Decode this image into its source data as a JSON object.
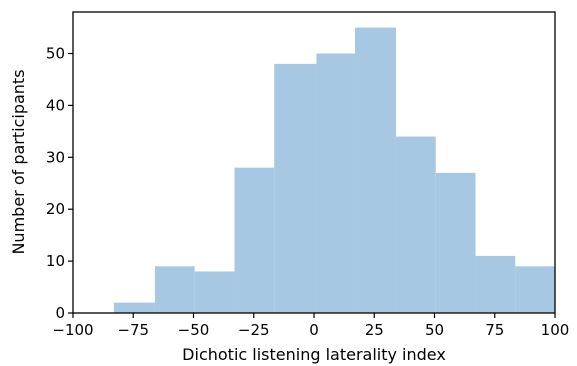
{
  "chart_data": {
    "type": "histogram",
    "title": "",
    "xlabel": "Dichotic listening laterality index",
    "ylabel": "Number of participants",
    "xlim": [
      -100,
      100
    ],
    "ylim": [
      0,
      58
    ],
    "x_ticks": [
      -100,
      -75,
      -50,
      -25,
      0,
      25,
      50,
      75,
      100
    ],
    "x_tick_labels": [
      "−100",
      "−75",
      "−50",
      "−25",
      "0",
      "25",
      "50",
      "75",
      "100"
    ],
    "y_ticks": [
      0,
      10,
      20,
      30,
      40,
      50
    ],
    "y_tick_labels": [
      "0",
      "10",
      "20",
      "30",
      "40",
      "50"
    ],
    "bar_color": "#a6c8e2",
    "grid": false,
    "bins": [
      {
        "x0": -83,
        "x1": -66,
        "value": 2
      },
      {
        "x0": -66,
        "x1": -49.5,
        "value": 9
      },
      {
        "x0": -49.5,
        "x1": -33,
        "value": 8
      },
      {
        "x0": -33,
        "x1": -16.5,
        "value": 28
      },
      {
        "x0": -16.5,
        "x1": 1,
        "value": 48
      },
      {
        "x0": 1,
        "x1": 17,
        "value": 50
      },
      {
        "x0": 17,
        "x1": 34,
        "value": 55
      },
      {
        "x0": 34,
        "x1": 50.5,
        "value": 34
      },
      {
        "x0": 50.5,
        "x1": 67,
        "value": 27
      },
      {
        "x0": 67,
        "x1": 83.5,
        "value": 11
      },
      {
        "x0": 83.5,
        "x1": 100,
        "value": 9
      }
    ]
  }
}
